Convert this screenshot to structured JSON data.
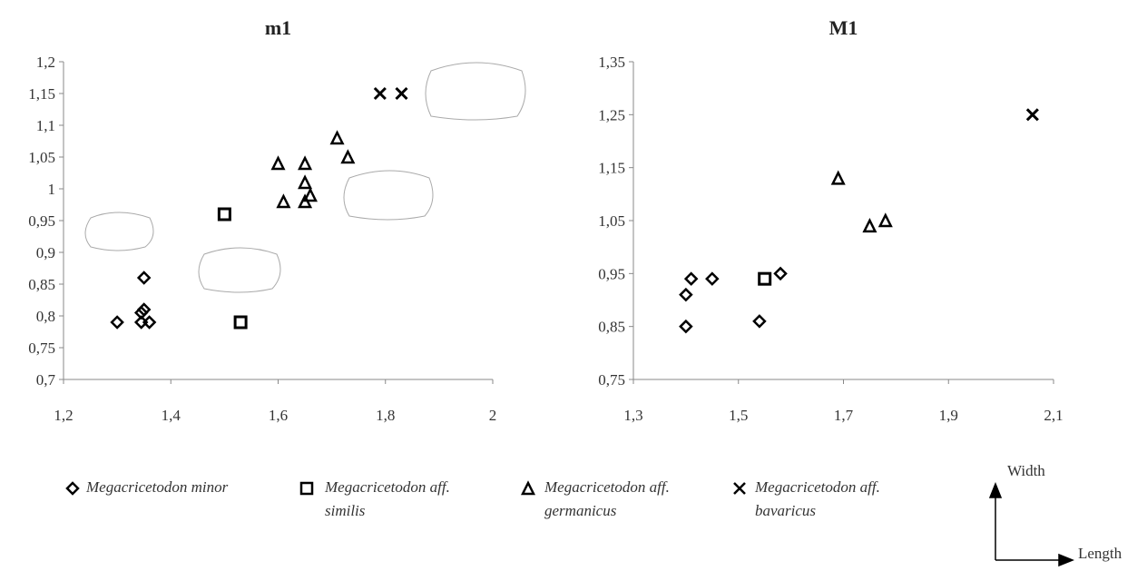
{
  "chart_data": [
    {
      "type": "scatter",
      "title": "m1",
      "xlim": [
        1.2,
        2
      ],
      "ylim": [
        0.7,
        1.2
      ],
      "xticks": [
        {
          "value": 1.2,
          "label": "1,2"
        },
        {
          "value": 1.4,
          "label": "1,4"
        },
        {
          "value": 1.6,
          "label": "1,6"
        },
        {
          "value": 1.8,
          "label": "1,8"
        },
        2
      ],
      "yticks": [
        {
          "value": 0.7,
          "label": "0,7"
        },
        {
          "value": 0.75,
          "label": "0,75"
        },
        {
          "value": 0.8,
          "label": "0,8"
        },
        {
          "value": 0.85,
          "label": "0,85"
        },
        {
          "value": 0.9,
          "label": "0,9"
        },
        {
          "value": 0.95,
          "label": "0,95"
        },
        1,
        {
          "value": 1.05,
          "label": "1,05"
        },
        {
          "value": 1.1,
          "label": "1,1"
        },
        {
          "value": 1.15,
          "label": "1,15"
        },
        {
          "value": 1.2,
          "label": "1,2"
        }
      ],
      "series": [
        {
          "name": "Megacricetodon minor",
          "marker": "diamond",
          "color": "#000000",
          "x": [
            1.3,
            1.345,
            1.36,
            1.345,
            1.35,
            1.35
          ],
          "values": [
            0.79,
            0.79,
            0.79,
            0.805,
            0.81,
            0.86
          ]
        },
        {
          "name": "Megacricetodon aff. similis",
          "marker": "square",
          "color": "#000000",
          "x": [
            1.5,
            1.53
          ],
          "values": [
            0.96,
            0.79
          ]
        },
        {
          "name": "Megacricetodon aff. germanicus",
          "marker": "triangle",
          "color": "#000000",
          "x": [
            1.6,
            1.61,
            1.65,
            1.65,
            1.65,
            1.66,
            1.71,
            1.73
          ],
          "values": [
            1.04,
            0.98,
            1.04,
            1.01,
            0.98,
            0.99,
            1.08,
            1.05
          ]
        },
        {
          "name": "Megacricetodon aff. bavaricus",
          "marker": "cross",
          "color": "#000000",
          "x": [
            1.79,
            1.83
          ],
          "values": [
            1.15,
            1.15
          ]
        }
      ]
    },
    {
      "type": "scatter",
      "title": "M1",
      "xlim": [
        1.3,
        2.1
      ],
      "ylim": [
        0.75,
        1.35
      ],
      "xticks": [
        {
          "value": 1.3,
          "label": "1,3"
        },
        {
          "value": 1.5,
          "label": "1,5"
        },
        {
          "value": 1.7,
          "label": "1,7"
        },
        {
          "value": 1.9,
          "label": "1,9"
        },
        {
          "value": 2.1,
          "label": "2,1"
        }
      ],
      "yticks": [
        {
          "value": 0.75,
          "label": "0,75"
        },
        {
          "value": 0.85,
          "label": "0,85"
        },
        {
          "value": 0.95,
          "label": "0,95"
        },
        {
          "value": 1.05,
          "label": "1,05"
        },
        {
          "value": 1.15,
          "label": "1,15"
        },
        {
          "value": 1.25,
          "label": "1,25"
        },
        {
          "value": 1.35,
          "label": "1,35"
        }
      ],
      "series": [
        {
          "marker": "diamond",
          "color": "#000000",
          "x": [
            1.4,
            1.4,
            1.41,
            1.45,
            1.54,
            1.58
          ],
          "values": [
            0.85,
            0.91,
            0.94,
            0.94,
            0.86,
            0.95
          ]
        },
        {
          "marker": "square",
          "color": "#000000",
          "x": [
            1.55
          ],
          "values": [
            0.94
          ]
        },
        {
          "marker": "triangle",
          "color": "#000000",
          "x": [
            1.69,
            1.75,
            1.78
          ],
          "values": [
            1.13,
            1.04,
            1.05
          ]
        },
        {
          "marker": "cross",
          "color": "#000000",
          "x": [
            2.06
          ],
          "values": [
            1.25
          ]
        }
      ],
      "y_arrow_label": "Width",
      "x_arrow_label": "Length"
    }
  ]
}
